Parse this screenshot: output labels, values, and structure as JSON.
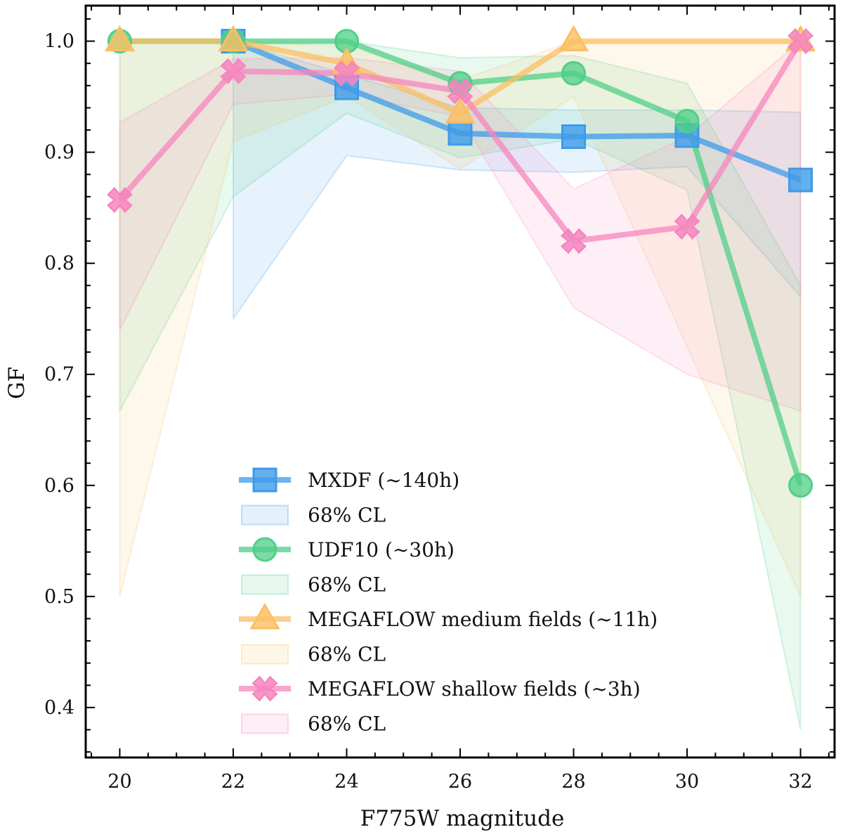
{
  "chart_data": {
    "type": "line",
    "title": "",
    "xlabel": "F775W magnitude",
    "ylabel": "GF",
    "xlim": [
      19.4,
      32.6
    ],
    "ylim": [
      0.355,
      1.032
    ],
    "xticks": [
      20,
      22,
      24,
      26,
      28,
      30,
      32
    ],
    "xtick_labels": [
      "20",
      "22",
      "24",
      "26",
      "28",
      "30",
      "32"
    ],
    "yticks": [
      0.4,
      0.5,
      0.6,
      0.7,
      0.8,
      0.9,
      1.0
    ],
    "ytick_labels": [
      "0.4",
      "0.5",
      "0.6",
      "0.7",
      "0.8",
      "0.9",
      "1.0"
    ],
    "grid": false,
    "legend_position": "lower-center",
    "series": [
      {
        "name": "MXDF (∼140h)",
        "band_label": "68% CL",
        "color": "#3d9be9",
        "marker": "square",
        "x": [
          22,
          24,
          26,
          28,
          30,
          32
        ],
        "y": [
          1.0,
          0.958,
          0.917,
          0.914,
          0.915,
          0.875
        ],
        "band_low": [
          0.75,
          0.897,
          0.884,
          0.882,
          0.887,
          0.77
        ],
        "band_high": [
          1.0,
          0.97,
          0.94,
          0.938,
          0.938,
          0.936
        ]
      },
      {
        "name": "UDF10 (∼30h)",
        "band_label": "68% CL",
        "color": "#4fcf87",
        "marker": "circle",
        "x": [
          20,
          22,
          24,
          26,
          28,
          30,
          32
        ],
        "y": [
          1.0,
          1.0,
          1.0,
          0.962,
          0.971,
          0.928,
          0.6
        ],
        "band_low": [
          0.667,
          0.86,
          0.935,
          0.895,
          0.912,
          0.866,
          0.38
        ],
        "band_high": [
          1.0,
          1.0,
          1.0,
          0.985,
          0.987,
          0.962,
          0.78
        ]
      },
      {
        "name": "MEGAFLOW medium fields (∼11h)",
        "band_label": "68% CL",
        "color": "#fbbf63",
        "marker": "triangle",
        "x": [
          20,
          22,
          24,
          26,
          28,
          32
        ],
        "y": [
          1.0,
          1.0,
          0.98,
          0.935,
          1.0,
          1.0
        ],
        "band_low": [
          0.5,
          0.91,
          0.95,
          0.885,
          0.95,
          0.5
        ],
        "band_high": [
          1.0,
          1.0,
          0.995,
          0.965,
          1.0,
          1.0
        ]
      },
      {
        "name": "MEGAFLOW shallow fields (∼3h)",
        "band_label": "68% CL",
        "color": "#f585be",
        "marker": "x",
        "x": [
          20,
          22,
          24,
          26,
          28,
          30,
          32
        ],
        "y": [
          0.857,
          0.973,
          0.971,
          0.955,
          0.82,
          0.833,
          1.0
        ],
        "band_low": [
          0.74,
          0.943,
          0.952,
          0.932,
          0.76,
          0.7,
          0.667
        ],
        "band_high": [
          0.927,
          0.984,
          0.985,
          0.973,
          0.867,
          0.914,
          1.0
        ]
      }
    ]
  }
}
